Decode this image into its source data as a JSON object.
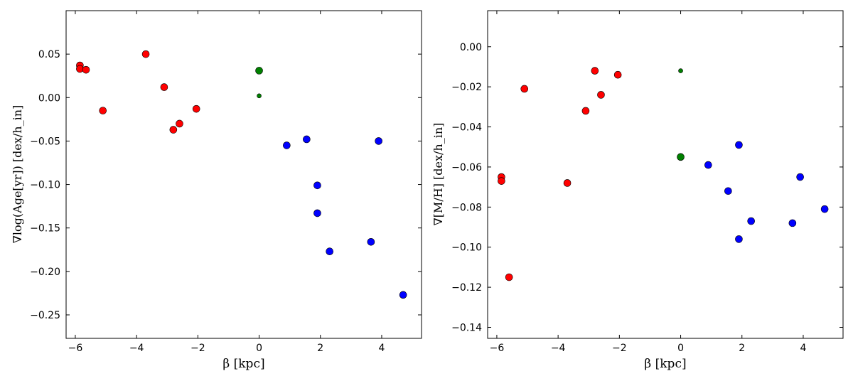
{
  "colors": {
    "red": "#ff0000",
    "green": "#008000",
    "blue": "#0000ff"
  },
  "chart_data": [
    {
      "type": "scatter",
      "xlabel": "β [kpc]",
      "ylabel": "∇log(Age[yr]) [dex/h_in]",
      "xlim": [
        -6.3,
        5.3
      ],
      "ylim": [
        -0.277,
        0.1
      ],
      "xticks": [
        "−6",
        "−4",
        "−2",
        "0",
        "2",
        "4"
      ],
      "xtick_values": [
        -6,
        -4,
        -2,
        0,
        2,
        4
      ],
      "yticks": [
        "0.05",
        "0.00",
        "−0.05",
        "−0.10",
        "−0.15",
        "−0.20",
        "−0.25"
      ],
      "ytick_values": [
        0.05,
        0.0,
        -0.05,
        -0.1,
        -0.15,
        -0.2,
        -0.25
      ],
      "series": [
        {
          "color": "red",
          "points": [
            [
              -5.85,
              0.037
            ],
            [
              -5.85,
              0.033
            ],
            [
              -5.65,
              0.032
            ],
            [
              -5.1,
              -0.015
            ],
            [
              -3.7,
              0.05
            ],
            [
              -3.1,
              0.012
            ],
            [
              -2.8,
              -0.037
            ],
            [
              -2.6,
              -0.03
            ],
            [
              -2.05,
              -0.013
            ]
          ]
        },
        {
          "color": "green",
          "points": [
            [
              0.0,
              0.031
            ],
            [
              0.0,
              0.002
            ]
          ],
          "sizes": [
            "large",
            "small"
          ]
        },
        {
          "color": "blue",
          "points": [
            [
              0.9,
              -0.055
            ],
            [
              1.55,
              -0.048
            ],
            [
              1.9,
              -0.101
            ],
            [
              1.9,
              -0.133
            ],
            [
              2.3,
              -0.177
            ],
            [
              3.65,
              -0.166
            ],
            [
              3.9,
              -0.05
            ],
            [
              4.7,
              -0.227
            ]
          ]
        }
      ],
      "grid": false
    },
    {
      "type": "scatter",
      "xlabel": "β [kpc]",
      "ylabel": "∇[M/H] [dex/h_in]",
      "xlim": [
        -6.3,
        5.3
      ],
      "ylim": [
        -0.1455,
        0.018
      ],
      "xticks": [
        "−6",
        "−4",
        "−2",
        "0",
        "2",
        "4"
      ],
      "xtick_values": [
        -6,
        -4,
        -2,
        0,
        2,
        4
      ],
      "yticks": [
        "0.00",
        "−0.02",
        "−0.04",
        "−0.06",
        "−0.08",
        "−0.10",
        "−0.12",
        "−0.14"
      ],
      "ytick_values": [
        0.0,
        -0.02,
        -0.04,
        -0.06,
        -0.08,
        -0.1,
        -0.12,
        -0.14
      ],
      "series": [
        {
          "color": "red",
          "points": [
            [
              -5.85,
              -0.065
            ],
            [
              -5.85,
              -0.067
            ],
            [
              -5.6,
              -0.115
            ],
            [
              -5.1,
              -0.021
            ],
            [
              -3.7,
              -0.068
            ],
            [
              -3.1,
              -0.032
            ],
            [
              -2.8,
              -0.012
            ],
            [
              -2.6,
              -0.024
            ],
            [
              -2.05,
              -0.014
            ]
          ]
        },
        {
          "color": "green",
          "points": [
            [
              0.0,
              -0.012
            ],
            [
              0.0,
              -0.055
            ]
          ],
          "sizes": [
            "small",
            "large"
          ]
        },
        {
          "color": "blue",
          "points": [
            [
              0.9,
              -0.059
            ],
            [
              1.55,
              -0.072
            ],
            [
              1.9,
              -0.049
            ],
            [
              1.9,
              -0.096
            ],
            [
              2.3,
              -0.087
            ],
            [
              3.65,
              -0.088
            ],
            [
              3.9,
              -0.065
            ],
            [
              4.7,
              -0.081
            ]
          ]
        }
      ],
      "grid": false
    }
  ]
}
